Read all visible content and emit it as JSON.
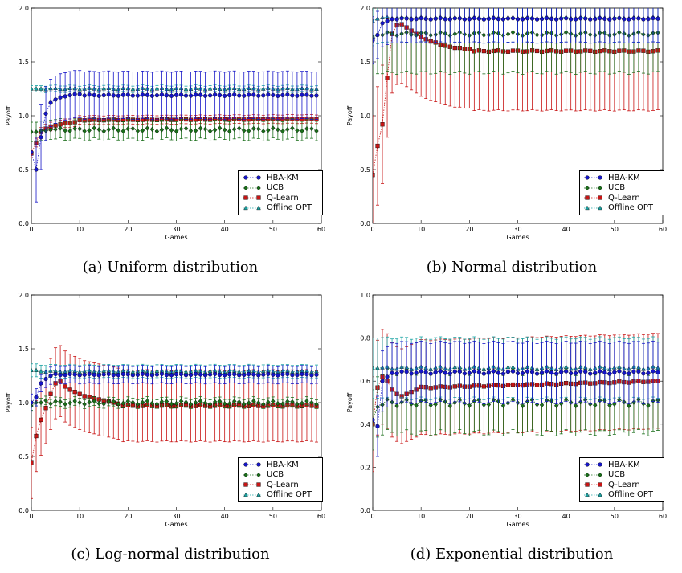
{
  "colors": {
    "HBA-KM": "#1515c8",
    "UCB": "#1a6e1a",
    "Q-Learn": "#c81515",
    "Offline OPT": "#1aa3a3"
  },
  "legend_labels": [
    "HBA-KM",
    "UCB",
    "Q-Learn",
    "Offline OPT"
  ],
  "chart_data": [
    {
      "type": "line",
      "caption": "(a) Uniform distribution",
      "xlabel": "Games",
      "ylabel": "Payoff",
      "xlim": [
        0,
        60
      ],
      "ylim": [
        0,
        2.0
      ],
      "xticks": [
        0,
        10,
        20,
        30,
        40,
        50,
        60
      ],
      "yticks": [
        0.0,
        0.5,
        1.0,
        1.5,
        2.0
      ],
      "grid": false,
      "legend_position": "lower-right",
      "series": [
        {
          "name": "HBA-KM",
          "marker": "circle",
          "start": [
            0.66,
            0.5,
            0.8,
            1.02,
            1.12,
            1.15,
            1.17,
            1.18,
            1.19,
            1.2,
            1.2
          ],
          "plateau": 1.19,
          "err": 0.22,
          "err_start": [
            0.0,
            0.3,
            0.3,
            0.25
          ]
        },
        {
          "name": "UCB",
          "marker": "diamond",
          "start": [
            0.85,
            0.85,
            0.86,
            0.86,
            0.87
          ],
          "plateau": 0.87,
          "err": 0.09
        },
        {
          "name": "Q-Learn",
          "marker": "square",
          "start": [
            0.65,
            0.75,
            0.85,
            0.88,
            0.9,
            0.91,
            0.92,
            0.93,
            0.93,
            0.94
          ],
          "plateau": 0.96,
          "end": 0.97,
          "err": 0.04
        },
        {
          "name": "Offline OPT",
          "marker": "triangle",
          "start": [
            1.25,
            1.25
          ],
          "plateau": 1.25,
          "err": 0.03
        }
      ]
    },
    {
      "type": "line",
      "caption": "(b) Normal distribution",
      "xlabel": "Games",
      "ylabel": "Payoff",
      "xlim": [
        0,
        60
      ],
      "ylim": [
        0,
        2.0
      ],
      "xticks": [
        0,
        10,
        20,
        30,
        40,
        50,
        60
      ],
      "yticks": [
        0.0,
        0.5,
        1.0,
        1.5,
        2.0
      ],
      "grid": false,
      "legend_position": "lower-right",
      "series": [
        {
          "name": "HBA-KM",
          "marker": "circle",
          "start": [
            1.7,
            1.75,
            1.86,
            1.88
          ],
          "plateau": 1.9,
          "err": 0.22
        },
        {
          "name": "UCB",
          "marker": "diamond",
          "start": [
            1.73,
            1.75,
            1.75
          ],
          "plateau": 1.76,
          "err": 0.36
        },
        {
          "name": "Q-Learn",
          "marker": "square",
          "start": [
            0.45,
            0.72,
            0.92,
            1.35,
            1.76,
            1.84,
            1.85,
            1.82,
            1.79,
            1.76,
            1.73,
            1.71,
            1.69,
            1.68,
            1.66,
            1.65,
            1.64,
            1.63,
            1.63,
            1.62,
            1.62
          ],
          "plateau": 1.6,
          "err": 0.55
        },
        {
          "name": "Offline OPT",
          "marker": "triangle",
          "start": [
            1.88,
            1.9
          ],
          "plateau": 1.91,
          "err": 0.23
        }
      ]
    },
    {
      "type": "line",
      "caption": "(c) Log-normal distribution",
      "xlabel": "Games",
      "ylabel": "Payoff",
      "xlim": [
        0,
        60
      ],
      "ylim": [
        0,
        2.0
      ],
      "xticks": [
        0,
        10,
        20,
        30,
        40,
        50,
        60
      ],
      "yticks": [
        0.0,
        0.5,
        1.0,
        1.5,
        2.0
      ],
      "grid": false,
      "legend_position": "lower-right",
      "series": [
        {
          "name": "HBA-KM",
          "marker": "circle",
          "start": [
            1.0,
            1.05,
            1.18,
            1.22,
            1.25
          ],
          "plateau": 1.26,
          "err": 0.08
        },
        {
          "name": "UCB",
          "marker": "diamond",
          "start": [
            0.97,
            1.0,
            1.0,
            1.02
          ],
          "plateau": 1.0,
          "err": 0.04
        },
        {
          "name": "Q-Learn",
          "marker": "square",
          "start": [
            0.44,
            0.69,
            0.84,
            0.95,
            1.08,
            1.18,
            1.2,
            1.15,
            1.12,
            1.1,
            1.08,
            1.06,
            1.05,
            1.04,
            1.03,
            1.02,
            1.01,
            1.0,
            0.99
          ],
          "plateau": 0.97,
          "err": 0.33
        },
        {
          "name": "Offline OPT",
          "marker": "triangle",
          "start": [
            1.3,
            1.3
          ],
          "plateau": 1.29,
          "err": 0.06
        }
      ]
    },
    {
      "type": "line",
      "caption": "(d) Exponential distribution",
      "xlabel": "Games",
      "ylabel": "Payoff",
      "xlim": [
        0,
        60
      ],
      "ylim": [
        0,
        1.0
      ],
      "xticks": [
        0,
        10,
        20,
        30,
        40,
        50,
        60
      ],
      "yticks": [
        0.0,
        0.2,
        0.4,
        0.6,
        0.8,
        1.0
      ],
      "grid": false,
      "legend_position": "lower-right",
      "series": [
        {
          "name": "HBA-KM",
          "marker": "circle",
          "start": [
            0.42,
            0.39,
            0.6,
            0.62
          ],
          "plateau": 0.64,
          "err": 0.14,
          "err_start": [
            0.0,
            0.14
          ]
        },
        {
          "name": "UCB",
          "marker": "diamond",
          "start": [
            0.42,
            0.48,
            0.49
          ],
          "plateau": 0.5,
          "err": 0.14
        },
        {
          "name": "Q-Learn",
          "marker": "square",
          "start": [
            0.4,
            0.57,
            0.62,
            0.6,
            0.56,
            0.54,
            0.53,
            0.54,
            0.55,
            0.56
          ],
          "plateau": 0.57,
          "end": 0.6,
          "err": 0.22
        },
        {
          "name": "Offline OPT",
          "marker": "triangle",
          "start": [
            0.66,
            0.66
          ],
          "plateau": 0.66,
          "err": 0.14
        }
      ]
    }
  ]
}
